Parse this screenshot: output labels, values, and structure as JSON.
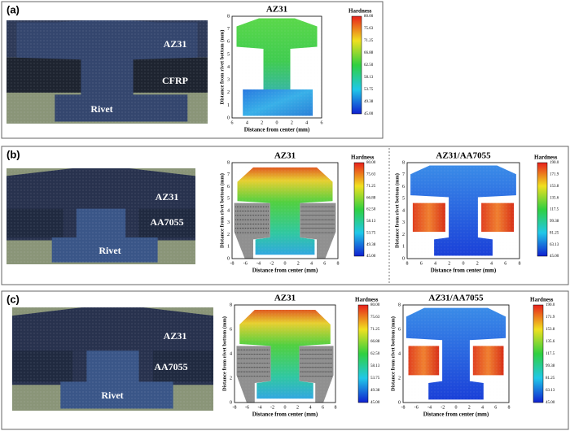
{
  "panels": [
    {
      "label": "(a)",
      "photo_labels": [
        "AZ31",
        "CFRP",
        "Rivet"
      ],
      "maps": [
        {
          "title": "AZ31",
          "legend_title": "Hardness",
          "legend_ticks": [
            "80.00",
            "75.63",
            "71.25",
            "66.88",
            "62.50",
            "58.13",
            "53.75",
            "49.38",
            "45.00"
          ],
          "x_label": "Distance from center (mm)",
          "y_label": "Distance from rivet bottom (mm)",
          "x_ticks": [
            "6",
            "4",
            "2",
            "0",
            "2",
            "4",
            "6"
          ],
          "y_ticks": [
            "0",
            "1",
            "2",
            "3",
            "4",
            "5",
            "6",
            "7",
            "8"
          ]
        }
      ]
    },
    {
      "label": "(b)",
      "photo_labels": [
        "AZ31",
        "AA7055",
        "Rivet"
      ],
      "maps": [
        {
          "title": "AZ31",
          "legend_title": "Hardness",
          "legend_ticks": [
            "80.00",
            "75.63",
            "71.25",
            "66.88",
            "62.50",
            "58.13",
            "53.75",
            "49.38",
            "45.00"
          ],
          "x_label": "Distance from center (mm)",
          "y_label": "Distance from rivet bottom (mm)",
          "x_ticks": [
            "-8",
            "-6",
            "-4",
            "-2",
            "0",
            "2",
            "4",
            "6",
            "8"
          ],
          "y_ticks": [
            "0",
            "1",
            "2",
            "3",
            "4",
            "5",
            "6",
            "7",
            "8"
          ]
        },
        {
          "title": "AZ31/AA7055",
          "legend_title": "Hardness",
          "legend_ticks": [
            "190.0",
            "171.9",
            "153.8",
            "135.6",
            "117.5",
            "99.38",
            "81.25",
            "63.13",
            "45.00"
          ],
          "x_label": "Distance from center (mm)",
          "y_label": "Distance from rivet bottom (mm)",
          "x_ticks": [
            "8",
            "6",
            "4",
            "2",
            "0",
            "2",
            "4",
            "6",
            "8"
          ],
          "y_ticks": [
            "0",
            "1",
            "2",
            "3",
            "4",
            "5",
            "6",
            "7",
            "8"
          ]
        }
      ]
    },
    {
      "label": "(c)",
      "photo_labels": [
        "AZ31",
        "AA7055",
        "Rivet"
      ],
      "maps": [
        {
          "title": "AZ31",
          "legend_title": "Hardness",
          "legend_ticks": [
            "80.00",
            "75.63",
            "71.25",
            "66.88",
            "62.50",
            "58.13",
            "53.75",
            "49.38",
            "45.00"
          ],
          "x_label": "Distance from center (mm)",
          "y_label": "Distance from rivet bottom (mm)",
          "x_ticks": [
            "-8",
            "-6",
            "-4",
            "-2",
            "0",
            "2",
            "4",
            "6",
            "8"
          ],
          "y_ticks": [
            "0",
            "2",
            "4",
            "6",
            "8"
          ]
        },
        {
          "title": "AZ31/AA7055",
          "legend_title": "Hardness",
          "legend_ticks": [
            "190.0",
            "171.9",
            "153.8",
            "135.6",
            "117.5",
            "99.38",
            "81.25",
            "63.13",
            "45.00"
          ],
          "x_label": "Distance from center (mm)",
          "y_label": "Distance from rivet bottom (mm)",
          "x_ticks": [
            "-8",
            "-6",
            "-4",
            "-2",
            "0",
            "2",
            "4",
            "6",
            "8"
          ],
          "y_ticks": [
            "0",
            "2",
            "4",
            "6",
            "8"
          ]
        }
      ]
    }
  ]
}
